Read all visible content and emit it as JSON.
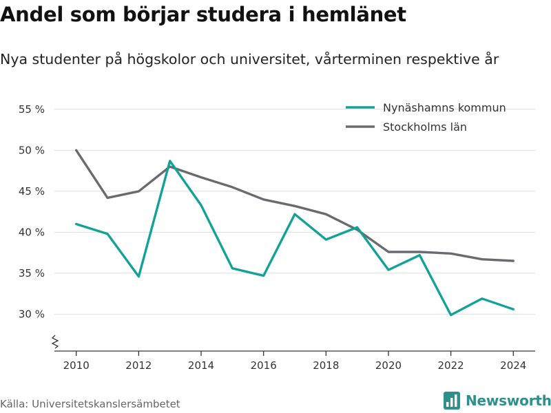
{
  "title": "Andel som börjar studera i hemlänet",
  "subtitle": "Nya studenter på högskolor och universitet, vårterminen respektive år",
  "source": "Källa: Universitetskanslersämbetet",
  "brand": {
    "name": "Newsworthy",
    "icon": "bar-chart-logo-icon"
  },
  "chart_data": {
    "type": "line",
    "x": [
      2010,
      2011,
      2012,
      2013,
      2014,
      2015,
      2016,
      2017,
      2018,
      2019,
      2020,
      2021,
      2022,
      2023,
      2024
    ],
    "x_ticks": [
      "2010",
      "2012",
      "2014",
      "2016",
      "2018",
      "2020",
      "2022",
      "2024"
    ],
    "y_ticks": [
      "30 %",
      "35 %",
      "40 %",
      "45 %",
      "50 %",
      "55 %"
    ],
    "ylim": [
      25.5,
      57
    ],
    "y_axis_break": true,
    "grid": true,
    "legend_position": "top-right",
    "series": [
      {
        "name": "Nynäshamns kommun",
        "color": "#13a297",
        "values": [
          41.0,
          39.8,
          34.6,
          48.7,
          43.3,
          35.6,
          34.7,
          42.2,
          39.1,
          40.6,
          35.4,
          37.2,
          29.9,
          31.9,
          30.6
        ]
      },
      {
        "name": "Stockholms län",
        "color": "#6b6a70",
        "values": [
          50.0,
          44.2,
          45.0,
          48.0,
          46.7,
          45.5,
          44.0,
          43.2,
          42.2,
          40.3,
          37.6,
          37.6,
          37.4,
          36.7,
          36.5
        ]
      }
    ]
  }
}
